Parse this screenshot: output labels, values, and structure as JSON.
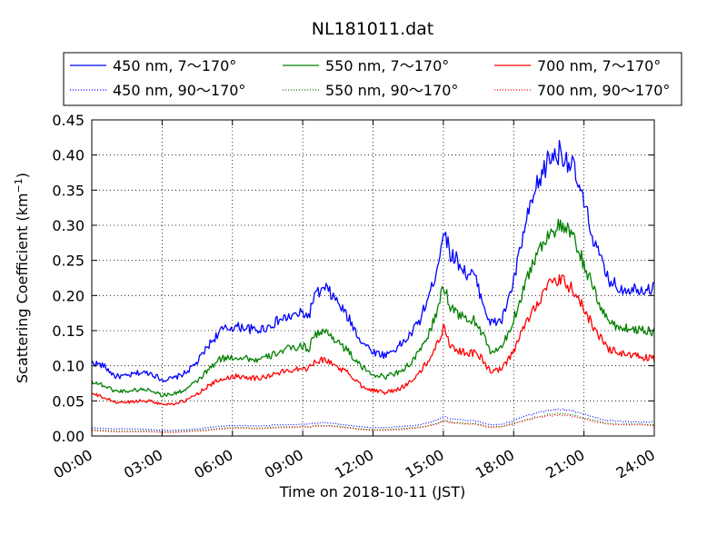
{
  "chart_data": {
    "type": "line",
    "title": "NL181011.dat",
    "xlabel": "Time on 2018-10-11 (JST)",
    "ylabel": "Scattering Coefficient (km",
    "ylabel_sup": "−1",
    "ylabel_close": ")",
    "x_unit": "hours",
    "xlim": [
      0,
      24
    ],
    "ylim": [
      0,
      0.45
    ],
    "x_ticks": [
      0,
      3,
      6,
      9,
      12,
      15,
      18,
      21,
      24
    ],
    "x_tick_labels": [
      "00:00",
      "03:00",
      "06:00",
      "09:00",
      "12:00",
      "15:00",
      "18:00",
      "21:00",
      "24:00"
    ],
    "y_ticks": [
      0,
      0.05,
      0.1,
      0.15,
      0.2,
      0.25,
      0.3,
      0.35,
      0.4,
      0.45
    ],
    "y_tick_labels": [
      "0.00",
      "0.05",
      "0.10",
      "0.15",
      "0.20",
      "0.25",
      "0.30",
      "0.35",
      "0.40",
      "0.45"
    ],
    "grid": true,
    "legend_position": "top",
    "x": [
      0,
      0.5,
      1,
      1.5,
      2,
      2.5,
      3,
      3.5,
      4,
      4.5,
      5,
      5.5,
      6,
      6.5,
      7,
      7.5,
      8,
      8.5,
      9,
      9.25,
      9.5,
      10,
      10.5,
      11,
      11.5,
      12,
      12.5,
      13,
      13.5,
      14,
      14.5,
      14.8,
      15,
      15.3,
      15.6,
      16,
      16.3,
      16.6,
      17,
      17.5,
      18,
      18.5,
      19,
      19.5,
      20,
      20.5,
      21,
      21.5,
      22,
      22.5,
      23,
      23.5,
      24
    ],
    "series": [
      {
        "name": "450 nm, 7～170°",
        "color": "#0000ff",
        "style": "solid",
        "values": [
          0.105,
          0.1,
          0.085,
          0.085,
          0.09,
          0.09,
          0.08,
          0.082,
          0.09,
          0.105,
          0.13,
          0.15,
          0.155,
          0.155,
          0.15,
          0.155,
          0.165,
          0.17,
          0.175,
          0.17,
          0.2,
          0.21,
          0.19,
          0.165,
          0.135,
          0.12,
          0.115,
          0.125,
          0.14,
          0.165,
          0.21,
          0.25,
          0.295,
          0.26,
          0.25,
          0.23,
          0.23,
          0.2,
          0.16,
          0.165,
          0.22,
          0.3,
          0.355,
          0.395,
          0.405,
          0.385,
          0.33,
          0.27,
          0.225,
          0.21,
          0.21,
          0.21,
          0.21
        ]
      },
      {
        "name": "550 nm, 7～170°",
        "color": "#008000",
        "style": "solid",
        "values": [
          0.078,
          0.072,
          0.064,
          0.064,
          0.066,
          0.066,
          0.058,
          0.06,
          0.066,
          0.078,
          0.095,
          0.11,
          0.112,
          0.112,
          0.108,
          0.112,
          0.12,
          0.125,
          0.128,
          0.124,
          0.145,
          0.148,
          0.135,
          0.118,
          0.098,
          0.088,
          0.084,
          0.09,
          0.1,
          0.12,
          0.155,
          0.185,
          0.215,
          0.185,
          0.175,
          0.165,
          0.165,
          0.15,
          0.12,
          0.125,
          0.165,
          0.22,
          0.26,
          0.29,
          0.298,
          0.285,
          0.245,
          0.2,
          0.165,
          0.155,
          0.152,
          0.152,
          0.148
        ]
      },
      {
        "name": "700 nm, 7～170°",
        "color": "#ff0000",
        "style": "solid",
        "values": [
          0.06,
          0.055,
          0.048,
          0.048,
          0.05,
          0.05,
          0.045,
          0.046,
          0.05,
          0.06,
          0.072,
          0.08,
          0.085,
          0.085,
          0.082,
          0.085,
          0.09,
          0.094,
          0.098,
          0.095,
          0.108,
          0.108,
          0.098,
          0.088,
          0.072,
          0.065,
          0.062,
          0.065,
          0.075,
          0.09,
          0.115,
          0.135,
          0.155,
          0.13,
          0.122,
          0.118,
          0.118,
          0.112,
          0.092,
          0.095,
          0.12,
          0.16,
          0.19,
          0.215,
          0.222,
          0.21,
          0.18,
          0.15,
          0.125,
          0.118,
          0.115,
          0.112,
          0.11
        ]
      },
      {
        "name": "450 nm, 90～170°",
        "color": "#0000ff",
        "style": "dotted",
        "values": [
          0.012,
          0.011,
          0.01,
          0.01,
          0.01,
          0.009,
          0.008,
          0.008,
          0.009,
          0.01,
          0.012,
          0.014,
          0.015,
          0.015,
          0.014,
          0.015,
          0.016,
          0.016,
          0.017,
          0.017,
          0.018,
          0.019,
          0.017,
          0.015,
          0.013,
          0.012,
          0.012,
          0.013,
          0.014,
          0.016,
          0.02,
          0.024,
          0.028,
          0.025,
          0.024,
          0.022,
          0.022,
          0.02,
          0.016,
          0.017,
          0.022,
          0.028,
          0.033,
          0.037,
          0.038,
          0.036,
          0.031,
          0.026,
          0.022,
          0.021,
          0.02,
          0.02,
          0.02
        ]
      },
      {
        "name": "550 nm, 90～170°",
        "color": "#008000",
        "style": "dotted",
        "values": [
          0.009,
          0.008,
          0.007,
          0.007,
          0.007,
          0.007,
          0.006,
          0.006,
          0.007,
          0.008,
          0.009,
          0.011,
          0.012,
          0.012,
          0.011,
          0.012,
          0.013,
          0.013,
          0.014,
          0.013,
          0.015,
          0.015,
          0.014,
          0.012,
          0.01,
          0.009,
          0.009,
          0.01,
          0.011,
          0.013,
          0.016,
          0.019,
          0.023,
          0.02,
          0.019,
          0.018,
          0.018,
          0.016,
          0.013,
          0.014,
          0.018,
          0.023,
          0.027,
          0.031,
          0.032,
          0.03,
          0.026,
          0.022,
          0.018,
          0.017,
          0.017,
          0.017,
          0.016
        ]
      },
      {
        "name": "700 nm, 90～170°",
        "color": "#ff0000",
        "style": "dotted",
        "values": [
          0.008,
          0.007,
          0.006,
          0.006,
          0.006,
          0.006,
          0.005,
          0.005,
          0.006,
          0.007,
          0.008,
          0.01,
          0.011,
          0.011,
          0.01,
          0.011,
          0.012,
          0.012,
          0.013,
          0.012,
          0.014,
          0.014,
          0.013,
          0.011,
          0.009,
          0.008,
          0.008,
          0.009,
          0.01,
          0.012,
          0.015,
          0.018,
          0.021,
          0.019,
          0.018,
          0.017,
          0.017,
          0.015,
          0.012,
          0.013,
          0.017,
          0.022,
          0.026,
          0.029,
          0.03,
          0.028,
          0.024,
          0.02,
          0.017,
          0.016,
          0.016,
          0.016,
          0.015
        ]
      }
    ]
  }
}
